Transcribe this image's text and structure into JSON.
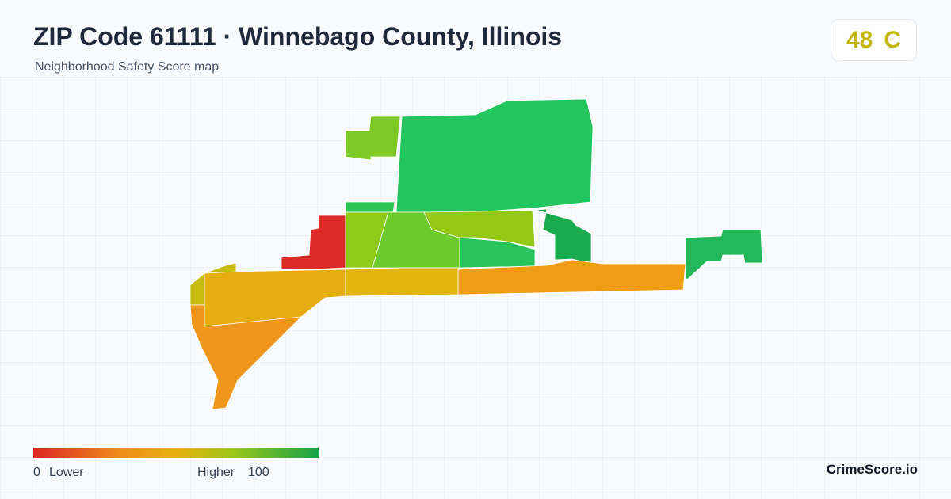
{
  "header": {
    "title": "ZIP Code 61111 · Winnebago County, Illinois",
    "subtitle": "Neighborhood Safety Score map"
  },
  "score": {
    "value": 48,
    "grade": "C"
  },
  "legend": {
    "min": 0,
    "min_label": "Lower",
    "max_label": "Higher",
    "max": 100
  },
  "brand": "CrimeScore.io"
}
